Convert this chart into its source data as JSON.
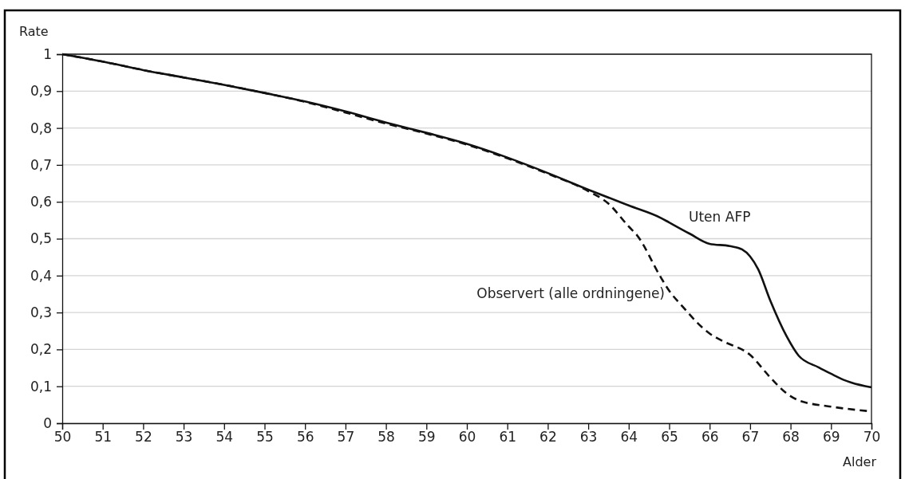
{
  "chart_data": {
    "type": "line",
    "xlabel": "Alder",
    "ylabel": "Rate",
    "xlim": [
      50,
      70
    ],
    "ylim": [
      0,
      1
    ],
    "xticks": [
      50,
      51,
      52,
      53,
      54,
      55,
      56,
      57,
      58,
      59,
      60,
      61,
      62,
      63,
      64,
      65,
      66,
      67,
      68,
      69,
      70
    ],
    "yticks": [
      0,
      {
        "value": 0.1,
        "label": "0,1"
      },
      {
        "value": 0.2,
        "label": "0,2"
      },
      {
        "value": 0.3,
        "label": "0,3"
      },
      {
        "value": 0.4,
        "label": "0,4"
      },
      {
        "value": 0.5,
        "label": "0,5"
      },
      {
        "value": 0.6,
        "label": "0,6"
      },
      {
        "value": 0.7,
        "label": "0,7"
      },
      {
        "value": 0.8,
        "label": "0,8"
      },
      {
        "value": 0.9,
        "label": "0,9"
      },
      1
    ],
    "grid": "y",
    "legend": false,
    "marker": "none",
    "series": [
      {
        "name": "Uten AFP",
        "color": "#111111",
        "line_style": "solid",
        "x": [
          50,
          51,
          52,
          53,
          54,
          55,
          56,
          57,
          58,
          59,
          60,
          61,
          62,
          63,
          64,
          64.8,
          65,
          65.5,
          66,
          66.5,
          66.8,
          67,
          67.2,
          67.5,
          67.9,
          68.2,
          68.7,
          69,
          69.3,
          69.5,
          70
        ],
        "values": [
          1,
          0.98,
          0.957,
          0.937,
          0.917,
          0.895,
          0.872,
          0.845,
          0.815,
          0.787,
          0.757,
          0.72,
          0.678,
          0.633,
          0.59,
          0.556,
          0.544,
          0.514,
          0.486,
          0.48,
          0.471,
          0.452,
          0.417,
          0.332,
          0.236,
          0.183,
          0.151,
          0.134,
          0.118,
          0.11,
          0.097
        ]
      },
      {
        "name": "Observert (alle ordningene)",
        "color": "#111111",
        "line_style": "dashed",
        "x": [
          50,
          51,
          52,
          53,
          54,
          55,
          56,
          57,
          58,
          59,
          60,
          61,
          62,
          63,
          63.5,
          64,
          64.2,
          64.8,
          65,
          65.3,
          66,
          66.3,
          67,
          67.5,
          67.9,
          68.2,
          69,
          70
        ],
        "values": [
          1,
          0.98,
          0.957,
          0.937,
          0.917,
          0.895,
          0.871,
          0.842,
          0.812,
          0.785,
          0.755,
          0.718,
          0.676,
          0.629,
          0.595,
          0.533,
          0.51,
          0.394,
          0.359,
          0.32,
          0.243,
          0.224,
          0.185,
          0.124,
          0.081,
          0.062,
          0.045,
          0.032
        ]
      }
    ]
  }
}
